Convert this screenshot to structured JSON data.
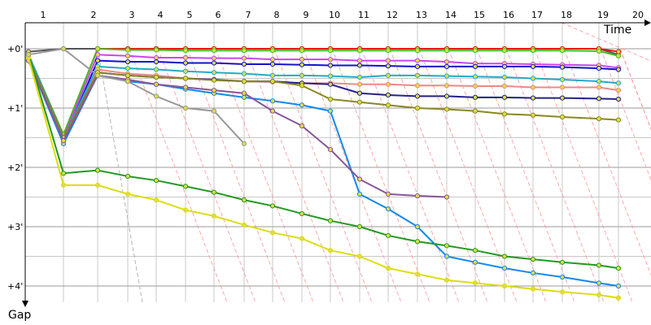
{
  "chart_data": {
    "type": "line",
    "xlabel": "Time",
    "ylabel": "Gap",
    "x_ticks": [
      "1",
      "2",
      "3",
      "4",
      "5",
      "6",
      "7",
      "8",
      "9",
      "10",
      "11",
      "12",
      "13",
      "14",
      "15",
      "16",
      "17",
      "18",
      "19",
      "20"
    ],
    "y_ticks": [
      "+0'",
      "+1'",
      "+2'",
      "+3'",
      "+4'"
    ],
    "y_range_minutes": [
      -0.35,
      4.4
    ],
    "grid": true,
    "colors": {
      "grid": "#c8c8c8",
      "axis": "#000000",
      "guide": "#ff8c8c",
      "guide_gray": "#b4b4b4"
    },
    "series": [
      {
        "color": "#555555",
        "points": [
          [
            1,
            0.05
          ],
          [
            2,
            0.0
          ],
          [
            3,
            0.0
          ],
          [
            4,
            0.0
          ],
          [
            5,
            0.0
          ],
          [
            6,
            0.0
          ],
          [
            7,
            0.0
          ],
          [
            8,
            0.0
          ],
          [
            9,
            0.0
          ],
          [
            10,
            0.0
          ],
          [
            11,
            0.0
          ],
          [
            12,
            0.0
          ],
          [
            13,
            0.0
          ],
          [
            14,
            0.0
          ],
          [
            15,
            0.0
          ],
          [
            16,
            0.0
          ],
          [
            17,
            0.0
          ],
          [
            18,
            0.0
          ],
          [
            19,
            0.0
          ],
          [
            20,
            0.0
          ],
          [
            21,
            0.1
          ]
        ]
      },
      {
        "color": "#ee1111",
        "points": [
          [
            1,
            0.1
          ],
          [
            2,
            1.45
          ],
          [
            3,
            0.0
          ],
          [
            4,
            0.0
          ],
          [
            5,
            0.0
          ],
          [
            6,
            0.0
          ],
          [
            7,
            0.0
          ],
          [
            8,
            0.0
          ],
          [
            9,
            0.0
          ],
          [
            10,
            0.0
          ],
          [
            11,
            0.0
          ],
          [
            12,
            0.0
          ],
          [
            13,
            0.0
          ],
          [
            14,
            0.0
          ],
          [
            15,
            0.0
          ],
          [
            16,
            0.0
          ],
          [
            17,
            0.0
          ],
          [
            18,
            0.0
          ],
          [
            19,
            0.0
          ],
          [
            20,
            0.0
          ],
          [
            21,
            0.05
          ]
        ]
      },
      {
        "color": "#44bb22",
        "points": [
          [
            1,
            0.1
          ],
          [
            2,
            1.45
          ],
          [
            3,
            0.0
          ],
          [
            4,
            0.02
          ],
          [
            5,
            0.02
          ],
          [
            6,
            0.03
          ],
          [
            7,
            0.03
          ],
          [
            8,
            0.03
          ],
          [
            9,
            0.03
          ],
          [
            10,
            0.03
          ],
          [
            11,
            0.03
          ],
          [
            12,
            0.03
          ],
          [
            13,
            0.03
          ],
          [
            14,
            0.03
          ],
          [
            15,
            0.03
          ],
          [
            16,
            0.03
          ],
          [
            17,
            0.03
          ],
          [
            18,
            0.03
          ],
          [
            19,
            0.03
          ],
          [
            20,
            0.04
          ],
          [
            21,
            0.12
          ]
        ]
      },
      {
        "color": "#cc44ee",
        "points": [
          [
            1,
            0.1
          ],
          [
            2,
            1.5
          ],
          [
            3,
            0.1
          ],
          [
            4,
            0.12
          ],
          [
            5,
            0.15
          ],
          [
            6,
            0.15
          ],
          [
            7,
            0.16
          ],
          [
            8,
            0.16
          ],
          [
            9,
            0.18
          ],
          [
            10,
            0.18
          ],
          [
            11,
            0.18
          ],
          [
            12,
            0.2
          ],
          [
            13,
            0.2
          ],
          [
            14,
            0.2
          ],
          [
            15,
            0.22
          ],
          [
            16,
            0.25
          ],
          [
            17,
            0.25
          ],
          [
            18,
            0.26
          ],
          [
            19,
            0.27
          ],
          [
            20,
            0.28
          ],
          [
            21,
            0.32
          ]
        ]
      },
      {
        "color": "#1111cc",
        "points": [
          [
            1,
            0.1
          ],
          [
            2,
            1.55
          ],
          [
            3,
            0.2
          ],
          [
            4,
            0.22
          ],
          [
            5,
            0.22
          ],
          [
            6,
            0.24
          ],
          [
            7,
            0.24
          ],
          [
            8,
            0.26
          ],
          [
            9,
            0.26
          ],
          [
            10,
            0.27
          ],
          [
            11,
            0.28
          ],
          [
            12,
            0.28
          ],
          [
            13,
            0.29
          ],
          [
            14,
            0.3
          ],
          [
            15,
            0.3
          ],
          [
            16,
            0.3
          ],
          [
            17,
            0.3
          ],
          [
            18,
            0.3
          ],
          [
            19,
            0.31
          ],
          [
            20,
            0.33
          ],
          [
            21,
            0.35
          ]
        ]
      },
      {
        "color": "#22aacc",
        "points": [
          [
            1,
            0.1
          ],
          [
            2,
            1.5
          ],
          [
            3,
            0.3
          ],
          [
            4,
            0.33
          ],
          [
            5,
            0.35
          ],
          [
            6,
            0.38
          ],
          [
            7,
            0.4
          ],
          [
            8,
            0.42
          ],
          [
            9,
            0.45
          ],
          [
            10,
            0.45
          ],
          [
            11,
            0.46
          ],
          [
            12,
            0.48
          ],
          [
            13,
            0.45
          ],
          [
            14,
            0.45
          ],
          [
            15,
            0.46
          ],
          [
            16,
            0.47
          ],
          [
            17,
            0.48
          ],
          [
            18,
            0.5
          ],
          [
            19,
            0.52
          ],
          [
            20,
            0.55
          ],
          [
            21,
            0.58
          ]
        ]
      },
      {
        "color": "#ee8888",
        "points": [
          [
            1,
            0.15
          ],
          [
            2,
            1.6
          ],
          [
            3,
            0.35
          ],
          [
            4,
            0.42
          ],
          [
            5,
            0.45
          ],
          [
            6,
            0.5
          ],
          [
            7,
            0.52
          ],
          [
            8,
            0.55
          ],
          [
            9,
            0.56
          ],
          [
            10,
            0.58
          ],
          [
            11,
            0.58
          ],
          [
            12,
            0.6
          ],
          [
            13,
            0.6
          ],
          [
            14,
            0.62
          ],
          [
            15,
            0.62
          ],
          [
            16,
            0.63
          ],
          [
            17,
            0.63
          ],
          [
            18,
            0.65
          ],
          [
            19,
            0.65
          ],
          [
            20,
            0.65
          ],
          [
            21,
            0.7
          ]
        ]
      },
      {
        "color": "#222288",
        "points": [
          [
            1,
            0.15
          ],
          [
            2,
            1.5
          ],
          [
            3,
            0.4
          ],
          [
            4,
            0.45
          ],
          [
            5,
            0.48
          ],
          [
            6,
            0.5
          ],
          [
            7,
            0.52
          ],
          [
            8,
            0.55
          ],
          [
            9,
            0.55
          ],
          [
            10,
            0.58
          ],
          [
            11,
            0.6
          ],
          [
            12,
            0.75
          ],
          [
            13,
            0.78
          ],
          [
            14,
            0.8
          ],
          [
            15,
            0.8
          ],
          [
            16,
            0.82
          ],
          [
            17,
            0.82
          ],
          [
            18,
            0.83
          ],
          [
            19,
            0.83
          ],
          [
            20,
            0.84
          ],
          [
            21,
            0.85
          ]
        ]
      },
      {
        "color": "#888822",
        "points": [
          [
            1,
            0.15
          ],
          [
            2,
            1.5
          ],
          [
            3,
            0.4
          ],
          [
            4,
            0.45
          ],
          [
            5,
            0.48
          ],
          [
            6,
            0.5
          ],
          [
            7,
            0.53
          ],
          [
            8,
            0.55
          ],
          [
            9,
            0.55
          ],
          [
            10,
            0.62
          ],
          [
            11,
            0.85
          ],
          [
            12,
            0.9
          ],
          [
            13,
            0.95
          ],
          [
            14,
            1.0
          ],
          [
            15,
            1.02
          ],
          [
            16,
            1.05
          ],
          [
            17,
            1.1
          ],
          [
            18,
            1.12
          ],
          [
            19,
            1.15
          ],
          [
            20,
            1.18
          ],
          [
            21,
            1.2
          ]
        ]
      },
      {
        "color": "#1188ee",
        "points": [
          [
            1,
            0.2
          ],
          [
            2,
            1.6
          ],
          [
            3,
            0.45
          ],
          [
            4,
            0.55
          ],
          [
            5,
            0.6
          ],
          [
            6,
            0.68
          ],
          [
            7,
            0.75
          ],
          [
            8,
            0.82
          ],
          [
            9,
            0.88
          ],
          [
            10,
            0.95
          ],
          [
            11,
            1.05
          ],
          [
            12,
            2.45
          ],
          [
            13,
            2.7
          ],
          [
            14,
            3.0
          ],
          [
            15,
            3.5
          ],
          [
            16,
            3.6
          ],
          [
            17,
            3.7
          ],
          [
            18,
            3.78
          ],
          [
            19,
            3.85
          ],
          [
            20,
            3.95
          ],
          [
            21,
            4.0
          ]
        ]
      },
      {
        "color": "#885599",
        "points": [
          [
            1,
            0.2
          ],
          [
            2,
            1.55
          ],
          [
            3,
            0.45
          ],
          [
            4,
            0.52
          ],
          [
            5,
            0.6
          ],
          [
            6,
            0.65
          ],
          [
            7,
            0.7
          ],
          [
            8,
            0.75
          ],
          [
            9,
            1.05
          ],
          [
            10,
            1.3
          ],
          [
            11,
            1.7
          ],
          [
            12,
            2.2
          ],
          [
            13,
            2.45
          ],
          [
            14,
            2.48
          ],
          [
            15,
            2.5
          ]
        ]
      },
      {
        "color": "#229922",
        "points": [
          [
            1,
            0.1
          ],
          [
            2,
            2.1
          ],
          [
            3,
            2.05
          ],
          [
            4,
            2.15
          ],
          [
            5,
            2.22
          ],
          [
            6,
            2.32
          ],
          [
            7,
            2.42
          ],
          [
            8,
            2.55
          ],
          [
            9,
            2.65
          ],
          [
            10,
            2.78
          ],
          [
            11,
            2.9
          ],
          [
            12,
            3.0
          ],
          [
            13,
            3.15
          ],
          [
            14,
            3.25
          ],
          [
            15,
            3.32
          ],
          [
            16,
            3.4
          ],
          [
            17,
            3.5
          ],
          [
            18,
            3.55
          ],
          [
            19,
            3.6
          ],
          [
            20,
            3.65
          ],
          [
            21,
            3.7
          ]
        ]
      },
      {
        "color": "#dddd11",
        "points": [
          [
            1,
            0.15
          ],
          [
            2,
            2.3
          ],
          [
            3,
            2.3
          ],
          [
            4,
            2.45
          ],
          [
            5,
            2.55
          ],
          [
            6,
            2.72
          ],
          [
            7,
            2.82
          ],
          [
            8,
            2.97
          ],
          [
            9,
            3.1
          ],
          [
            10,
            3.2
          ],
          [
            11,
            3.4
          ],
          [
            12,
            3.5
          ],
          [
            13,
            3.7
          ],
          [
            14,
            3.8
          ],
          [
            15,
            3.9
          ],
          [
            16,
            3.95
          ],
          [
            17,
            4.0
          ],
          [
            18,
            4.05
          ],
          [
            19,
            4.1
          ],
          [
            20,
            4.15
          ],
          [
            21,
            4.2
          ]
        ]
      },
      {
        "color": "#999999",
        "points": [
          [
            1,
            0.1
          ],
          [
            2,
            0.0
          ],
          [
            3,
            0.45
          ],
          [
            4,
            0.55
          ],
          [
            5,
            0.8
          ],
          [
            6,
            1.0
          ],
          [
            7,
            1.05
          ],
          [
            8,
            1.6
          ]
        ]
      }
    ]
  }
}
